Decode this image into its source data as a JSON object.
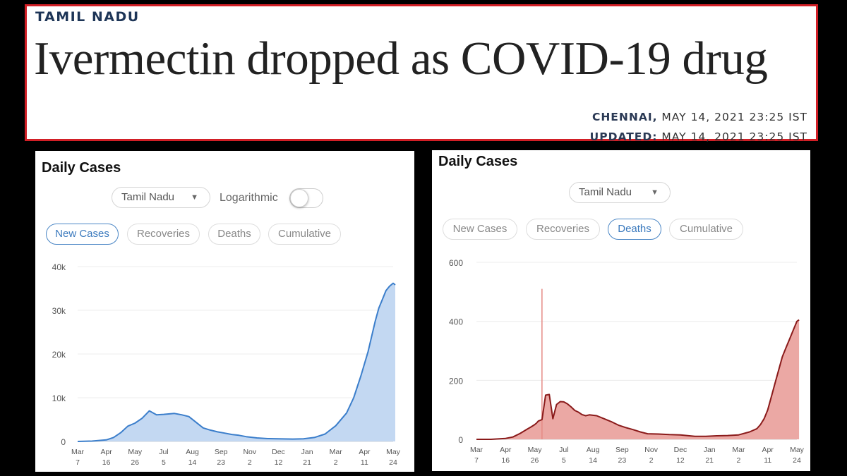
{
  "article": {
    "section": "TAMIL NADU",
    "headline": "Ivermectin dropped as COVID-19 drug",
    "dateline_place": "CHENNAI,",
    "dateline_date": "MAY 14, 2021 23:25 IST",
    "updated_label": "UPDATED:",
    "updated_date": "MAY 14, 2021 23:25 IST"
  },
  "panels": [
    {
      "title": "Daily Cases",
      "region": "Tamil Nadu",
      "log_label": "Logarithmic",
      "tabs": [
        "New Cases",
        "Recoveries",
        "Deaths",
        "Cumulative"
      ],
      "active_tab": "New Cases",
      "color": "#3b7ecb",
      "fill": "#c3d8f2"
    },
    {
      "title": "Daily Cases",
      "region": "Tamil Nadu",
      "tabs": [
        "New Cases",
        "Recoveries",
        "Deaths",
        "Cumulative"
      ],
      "active_tab": "Deaths",
      "color": "#8a1a1a",
      "fill": "#eba8a4"
    }
  ],
  "chart_data": [
    {
      "type": "area",
      "title": "Daily Cases",
      "series_name": "New Cases",
      "x_labels": [
        "Mar 7",
        "Apr 16",
        "May 26",
        "Jul 5",
        "Aug 14",
        "Sep 23",
        "Nov 2",
        "Dec 12",
        "Jan 21",
        "Mar 2",
        "Apr 11",
        "May 24"
      ],
      "y_ticks": [
        "0",
        "10k",
        "20k",
        "30k",
        "40k"
      ],
      "ylim": [
        0,
        40000
      ],
      "x": [
        0,
        4,
        8,
        10,
        12,
        14,
        16,
        18,
        20,
        22,
        24,
        27,
        29,
        31,
        33,
        35,
        37,
        39,
        41,
        43,
        45,
        47,
        50,
        53,
        56,
        60,
        63,
        66,
        69,
        72,
        75,
        77,
        79,
        81,
        82,
        83,
        84,
        85,
        86,
        87,
        88,
        88.6
      ],
      "values": [
        0,
        80,
        350,
        900,
        2000,
        3500,
        4200,
        5300,
        7000,
        6100,
        6200,
        6400,
        6100,
        5700,
        4400,
        3100,
        2600,
        2200,
        1900,
        1600,
        1400,
        1100,
        800,
        650,
        600,
        550,
        600,
        900,
        1700,
        3600,
        6500,
        10000,
        15000,
        20500,
        24000,
        27500,
        30500,
        32500,
        34500,
        35500,
        36200,
        35800
      ]
    },
    {
      "type": "area",
      "title": "Daily Cases",
      "series_name": "Deaths",
      "x_labels": [
        "Mar 7",
        "Apr 16",
        "May 26",
        "Jul 5",
        "Aug 14",
        "Sep 23",
        "Nov 2",
        "Dec 12",
        "Jan 21",
        "Mar 2",
        "Apr 11",
        "May 24"
      ],
      "y_ticks": [
        "0",
        "200",
        "400",
        "600"
      ],
      "ylim": [
        0,
        600
      ],
      "x": [
        0,
        4,
        8,
        10,
        12,
        14,
        15,
        16,
        16.5,
        17,
        18,
        19,
        20,
        21,
        22,
        23,
        24,
        25,
        26,
        27,
        28,
        29,
        30,
        31,
        33,
        35,
        37,
        39,
        41,
        43,
        45,
        47,
        50,
        53,
        56,
        60,
        63,
        66,
        69,
        72,
        75,
        77,
        78,
        79,
        80,
        81,
        82,
        83,
        84,
        85,
        86,
        87,
        88,
        88.6
      ],
      "values": [
        0,
        0,
        3,
        8,
        20,
        35,
        42,
        50,
        55,
        62,
        67,
        150,
        152,
        70,
        118,
        128,
        127,
        120,
        110,
        98,
        92,
        84,
        80,
        83,
        80,
        70,
        60,
        48,
        40,
        33,
        25,
        19,
        18,
        16,
        15,
        10,
        10,
        12,
        13,
        15,
        25,
        36,
        50,
        70,
        100,
        145,
        190,
        235,
        280,
        310,
        340,
        370,
        400,
        405
      ],
      "annotation_spike": {
        "x": 18,
        "value": 510
      }
    }
  ]
}
